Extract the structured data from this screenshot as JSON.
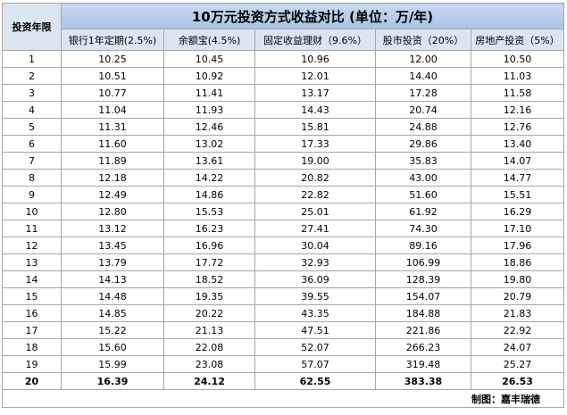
{
  "table": {
    "title": "10万元投资方式收益对比 (单位：万/年)",
    "corner": "投资年限",
    "columns": [
      "银行1年定期(2.5%)",
      "余额宝(4.5%)",
      "固定收益理财（9.6%）",
      "股市投资（20%）",
      "房地产投资（5%）"
    ],
    "rows": [
      [
        "1",
        "10.25",
        "10.45",
        "10.96",
        "12.00",
        "10.50"
      ],
      [
        "2",
        "10.51",
        "10.92",
        "12.01",
        "14.40",
        "11.03"
      ],
      [
        "3",
        "10.77",
        "11.41",
        "13.17",
        "17.28",
        "11.58"
      ],
      [
        "4",
        "11.04",
        "11.93",
        "14.43",
        "20.74",
        "12.16"
      ],
      [
        "5",
        "11.31",
        "12.46",
        "15.81",
        "24.88",
        "12.76"
      ],
      [
        "6",
        "11.60",
        "13.02",
        "17.33",
        "29.86",
        "13.40"
      ],
      [
        "7",
        "11.89",
        "13.61",
        "19.00",
        "35.83",
        "14.07"
      ],
      [
        "8",
        "12.18",
        "14.22",
        "20.82",
        "43.00",
        "14.77"
      ],
      [
        "9",
        "12.49",
        "14.86",
        "22.82",
        "51.60",
        "15.51"
      ],
      [
        "10",
        "12.80",
        "15.53",
        "25.01",
        "61.92",
        "16.29"
      ],
      [
        "11",
        "13.12",
        "16.23",
        "27.41",
        "74.30",
        "17.10"
      ],
      [
        "12",
        "13.45",
        "16.96",
        "30.04",
        "89.16",
        "17.96"
      ],
      [
        "13",
        "13.79",
        "17.72",
        "32.93",
        "106.99",
        "18.86"
      ],
      [
        "14",
        "14.13",
        "18.52",
        "36.09",
        "128.39",
        "19.80"
      ],
      [
        "15",
        "14.48",
        "19.35",
        "39.55",
        "154.07",
        "20.79"
      ],
      [
        "16",
        "14.85",
        "20.22",
        "43.35",
        "184.88",
        "21.83"
      ],
      [
        "17",
        "15.22",
        "21.13",
        "47.51",
        "221.86",
        "22.92"
      ],
      [
        "18",
        "15.60",
        "22.08",
        "52.07",
        "266.23",
        "24.07"
      ],
      [
        "19",
        "15.99",
        "23.08",
        "57.07",
        "319.48",
        "25.27"
      ],
      [
        "20",
        "16.39",
        "24.12",
        "62.55",
        "383.38",
        "26.53"
      ]
    ],
    "footer": "制图：嘉丰瑞德"
  }
}
